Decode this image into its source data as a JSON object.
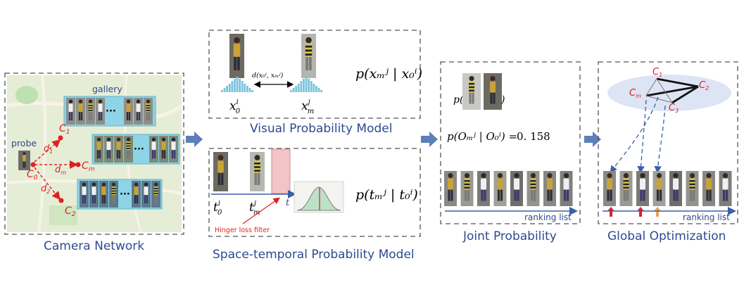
{
  "colors": {
    "caption_blue": "#2e4a8f",
    "red": "#e02020",
    "orange": "#f0a050",
    "arrow_blue": "#5b7fb8",
    "map_bg": "#e4ecd2",
    "gallery_box": "#8fd3e6",
    "pink_box": "#f2c4c8"
  },
  "camera_network": {
    "caption": "Camera Network",
    "gallery_label": "gallery",
    "probe_label": "probe",
    "nodes": [
      "C",
      "C",
      "C",
      "C"
    ],
    "node_subs": [
      "0",
      "1",
      "m",
      "2"
    ],
    "edges": [
      "d",
      "d",
      "d"
    ],
    "edge_subs": [
      "1",
      "m",
      "2"
    ],
    "ellipsis": "···"
  },
  "visual_model": {
    "caption": "Visual Probability Model",
    "distance_label": "d(x₀ⁱ, xₘʲ)",
    "left_var": "x",
    "left_sup": "i",
    "left_sub": "0",
    "right_var": "x",
    "right_sup": "j",
    "right_sub": "m",
    "formula": "p(xₘʲ | x₀ⁱ)"
  },
  "space_temporal_model": {
    "caption": "Space-temporal Probability Model",
    "t0_var": "t",
    "t0_sup": "i",
    "t0_sub": "0",
    "tm_var": "t",
    "tm_sup": "j",
    "tm_sub": "m",
    "axis_label": "t",
    "filter_label": "Hinger loss filter",
    "formula": "p(tₘʲ | t₀ⁱ)"
  },
  "joint_probability": {
    "caption": "Joint Probability",
    "p_prefix": "p(",
    "p_suffix": ")",
    "formula": "p(Oₘʲ | O₀ⁱ) =",
    "value": "0. 158",
    "ranking_label": "ranking list"
  },
  "global_optimization": {
    "caption": "Global Optimization",
    "nodes": [
      "C",
      "C",
      "C",
      "C"
    ],
    "node_subs": [
      "1",
      "2",
      "m",
      "3"
    ],
    "ranking_label": "ranking list"
  }
}
